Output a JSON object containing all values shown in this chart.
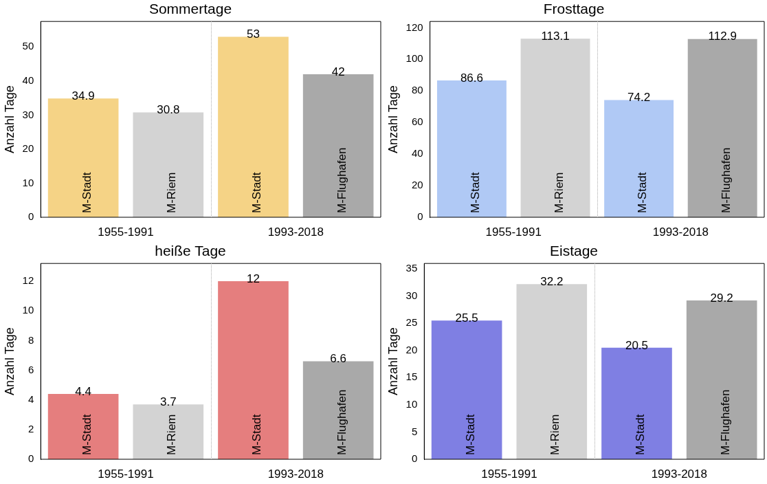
{
  "chart_data": [
    {
      "type": "bar",
      "title": "Sommertage",
      "ylabel": "Anzahl Tage",
      "categories": [
        "M-Stadt",
        "M-Riem",
        "M-Stadt",
        "M-Flughafen"
      ],
      "values": [
        34.9,
        30.8,
        53,
        42
      ],
      "colors": [
        "#f5d386",
        "#d3d3d3",
        "#f5d386",
        "#a9a9a9"
      ],
      "ylim": [
        0,
        57.5
      ],
      "yticks": [
        0,
        10,
        20,
        30,
        40,
        50
      ],
      "data_labels": true,
      "annotations": [
        "1955-1991",
        "1993-2018"
      ],
      "grid": false,
      "legend": false
    },
    {
      "type": "bar",
      "title": "Frosttage",
      "ylabel": "Anzahl Tage",
      "categories": [
        "M-Stadt",
        "M-Riem",
        "M-Stadt",
        "M-Flughafen"
      ],
      "values": [
        86.6,
        113.1,
        74.2,
        112.9
      ],
      "colors": [
        "#b0c9f5",
        "#d3d3d3",
        "#b0c9f5",
        "#a9a9a9"
      ],
      "ylim": [
        0,
        124
      ],
      "yticks": [
        0,
        20,
        40,
        60,
        80,
        100,
        120
      ],
      "data_labels": true,
      "annotations": [
        "1955-1991",
        "1993-2018"
      ],
      "grid": false,
      "legend": false
    },
    {
      "type": "bar",
      "title": "heiße Tage",
      "ylabel": "Anzahl Tage",
      "categories": [
        "M-Stadt",
        "M-Riem",
        "M-Stadt",
        "M-Flughafen"
      ],
      "values": [
        4.4,
        3.7,
        12,
        6.6
      ],
      "colors": [
        "#e57e7e",
        "#d3d3d3",
        "#e57e7e",
        "#a9a9a9"
      ],
      "ylim": [
        0,
        13.2
      ],
      "yticks": [
        0,
        2,
        4,
        6,
        8,
        10,
        12
      ],
      "data_labels": true,
      "annotations": [
        "1955-1991",
        "1993-2018"
      ],
      "grid": false,
      "legend": false
    },
    {
      "type": "bar",
      "title": "Eistage",
      "ylabel": "Anzahl Tage",
      "categories": [
        "M-Stadt",
        "M-Riem",
        "M-Stadt",
        "M-Flughafen"
      ],
      "values": [
        25.5,
        32.2,
        20.5,
        29.2
      ],
      "colors": [
        "#7f7fe3",
        "#d3d3d3",
        "#7f7fe3",
        "#a9a9a9"
      ],
      "ylim": [
        0,
        36
      ],
      "yticks": [
        0,
        5,
        10,
        15,
        20,
        25,
        30,
        35
      ],
      "data_labels": true,
      "annotations": [
        "1955-1991",
        "1993-2018"
      ],
      "grid": false,
      "legend": false
    }
  ]
}
